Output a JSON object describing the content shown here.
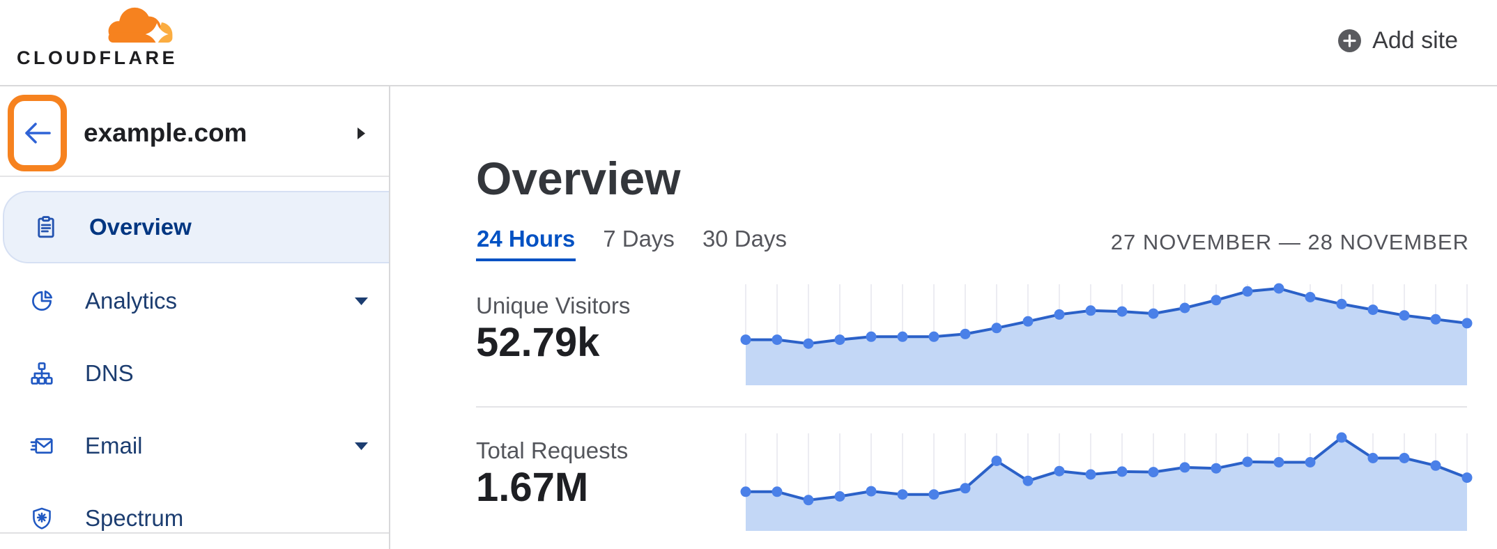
{
  "header": {
    "logo_text": "CLOUDFLARE",
    "add_site_label": "Add site"
  },
  "sidebar": {
    "site_name": "example.com",
    "items": [
      {
        "label": "Overview",
        "selected": true,
        "icon": "clipboard-icon"
      },
      {
        "label": "Analytics",
        "selected": false,
        "icon": "pie-chart-icon",
        "expandable": true
      },
      {
        "label": "DNS",
        "selected": false,
        "icon": "dns-tree-icon"
      },
      {
        "label": "Email",
        "selected": false,
        "icon": "email-icon",
        "expandable": true
      },
      {
        "label": "Spectrum",
        "selected": false,
        "icon": "shield-icon"
      }
    ]
  },
  "main": {
    "title": "Overview",
    "time_tabs": [
      {
        "label": "24 Hours",
        "active": true
      },
      {
        "label": "7 Days",
        "active": false
      },
      {
        "label": "30 Days",
        "active": false
      }
    ],
    "date_range": "27 NOVEMBER — 28 NOVEMBER",
    "metrics": [
      {
        "label": "Unique Visitors",
        "value": "52.79k"
      },
      {
        "label": "Total Requests",
        "value": "1.67M"
      }
    ]
  },
  "icons": {
    "back": "arrow-left",
    "site_expand": "caret-right",
    "nav_expand": "caret-down",
    "add_site": "plus-in-circle",
    "logo": "cloudflare-cloud"
  },
  "colors": {
    "brand_orange": "#f6821f",
    "logo_orange_light": "#fbad41",
    "link_blue": "#0051c3",
    "nav_selected_text": "#003681",
    "nav_text": "#1c3d70",
    "nav_icon_blue": "#2058c2",
    "selected_pill_bg": "#ebf1fa",
    "back_arrow_blue": "#2f63d6",
    "heading_gray": "#33363b",
    "muted_gray": "#55565c",
    "border_gray": "#d8d8da"
  },
  "chart_data": [
    {
      "type": "area",
      "title": "Unique Visitors",
      "total_shown": "52.79k",
      "period": "24 Hours (27 November — 28 November)",
      "x_unit": "hour",
      "n_points": 24,
      "values": [
        1520,
        1520,
        1390,
        1520,
        1620,
        1620,
        1620,
        1710,
        1910,
        2130,
        2360,
        2490,
        2460,
        2390,
        2580,
        2840,
        3130,
        3230,
        2940,
        2710,
        2520,
        2330,
        2200,
        2070
      ],
      "ylim": [
        0,
        3230
      ],
      "grid": "vertical-above-line",
      "legend": "none",
      "line_color": "#2b61c8",
      "dot_color": "#4a80e8",
      "fill_color": "#c3d7f6",
      "grid_color": "#ececf2"
    },
    {
      "type": "area",
      "title": "Total Requests",
      "total_shown": "1.67M",
      "period": "24 Hours (27 November — 28 November)",
      "x_unit": "hour",
      "n_points": 24,
      "values": [
        48700,
        48700,
        38300,
        42900,
        49300,
        45300,
        45300,
        53000,
        87100,
        62200,
        74300,
        70200,
        73700,
        73100,
        78900,
        77800,
        85900,
        85300,
        85300,
        116100,
        90500,
        90500,
        81200,
        66200
      ],
      "ylim": [
        0,
        116100
      ],
      "grid": "vertical-above-line",
      "legend": "none",
      "line_color": "#2b61c8",
      "dot_color": "#4a80e8",
      "fill_color": "#c3d7f6",
      "grid_color": "#ececf2"
    }
  ]
}
